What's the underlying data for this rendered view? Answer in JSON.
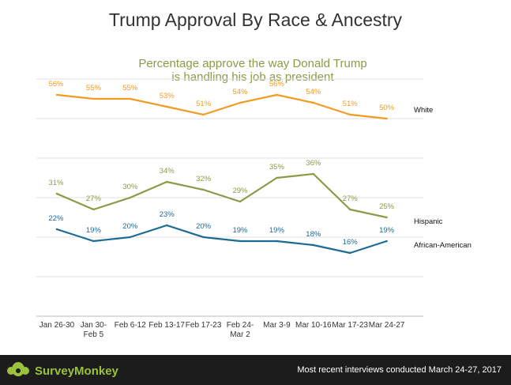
{
  "chart_data": {
    "type": "line",
    "title": "Trump Approval By Race & Ancestry",
    "subtitle_lines": [
      "Percentage approve the way Donald Trump",
      "is handling his job as president"
    ],
    "categories": [
      [
        "Jan 26-30"
      ],
      [
        "Jan 30-",
        "Feb 5"
      ],
      [
        "Feb 6-12"
      ],
      [
        "Feb 13-17"
      ],
      [
        "Feb 17-23"
      ],
      [
        "Feb 24-",
        "Mar 2"
      ],
      [
        "Mar 3-9"
      ],
      [
        "Mar 10-16"
      ],
      [
        "Mar 17-23"
      ],
      [
        "Mar 24-27"
      ]
    ],
    "series": [
      {
        "name": "White",
        "color": "#f39a22",
        "values": [
          56,
          55,
          55,
          53,
          51,
          54,
          56,
          54,
          51,
          50
        ],
        "labels": [
          "56%",
          "55%",
          "55%",
          "53%",
          "51%",
          "54%",
          "56%",
          "54%",
          "51%",
          "50%"
        ]
      },
      {
        "name": "Hispanic",
        "color": "#8c9a48",
        "values": [
          31,
          27,
          30,
          34,
          32,
          29,
          35,
          36,
          27,
          25
        ],
        "labels": [
          "31%",
          "27%",
          "30%",
          "34%",
          "32%",
          "29%",
          "35%",
          "36%",
          "27%",
          "25%"
        ]
      },
      {
        "name": "African-American",
        "color": "#1b6b93",
        "values": [
          22,
          19,
          20,
          23,
          20,
          19,
          19,
          18,
          16,
          19
        ],
        "labels": [
          "22%",
          "19%",
          "20%",
          "23%",
          "20%",
          "19%",
          "19%",
          "18%",
          "16%",
          "19%"
        ]
      }
    ],
    "ylim": [
      0,
      60
    ],
    "grid": true,
    "legend": "inline-right"
  },
  "footer": {
    "brand": "SurveyMonkey",
    "note": "Most recent interviews conducted March 24-27, 2017",
    "logo_icon": "surveymonkey-logo-icon",
    "brand_color": "#9bc23c"
  }
}
